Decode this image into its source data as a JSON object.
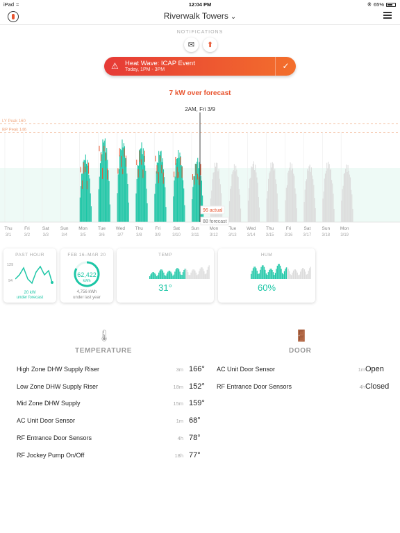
{
  "status": {
    "device": "iPad",
    "time": "12:04 PM",
    "battery": "65%"
  },
  "nav": {
    "title": "Riverwalk Towers"
  },
  "notifications": {
    "label": "NOTIFICATIONS"
  },
  "alert": {
    "title": "Heat Wave: ICAP Event",
    "subtitle": "Today, 1PM - 3PM"
  },
  "headline": "7 kW over forecast",
  "chart_data": {
    "type": "area",
    "cursor_label": "2AM, Fri 3/9",
    "ref_lines": [
      {
        "label": "LY Peak 160",
        "value": 160
      },
      {
        "label": "BP Peak 146",
        "value": 146
      }
    ],
    "actual_label": "96 actual",
    "forecast_label": "88 forecast",
    "days": [
      {
        "day": "Thu",
        "date": "3/1"
      },
      {
        "day": "Fri",
        "date": "3/2"
      },
      {
        "day": "Sat",
        "date": "3/3"
      },
      {
        "day": "Sun",
        "date": "3/4"
      },
      {
        "day": "Mon",
        "date": "3/5"
      },
      {
        "day": "Tue",
        "date": "3/6"
      },
      {
        "day": "Wed",
        "date": "3/7"
      },
      {
        "day": "Thu",
        "date": "3/8"
      },
      {
        "day": "Fri",
        "date": "3/9"
      },
      {
        "day": "Sat",
        "date": "3/10"
      },
      {
        "day": "Sun",
        "date": "3/11"
      },
      {
        "day": "Mon",
        "date": "3/12"
      },
      {
        "day": "Tue",
        "date": "3/13"
      },
      {
        "day": "Wed",
        "date": "3/14"
      },
      {
        "day": "Thu",
        "date": "3/15"
      },
      {
        "day": "Fri",
        "date": "3/16"
      },
      {
        "day": "Sat",
        "date": "3/17"
      },
      {
        "day": "Sun",
        "date": "3/18"
      },
      {
        "day": "Mon",
        "date": "3/19"
      }
    ],
    "daily_peaks_actual": [
      null,
      null,
      null,
      null,
      110,
      140,
      135,
      130,
      120,
      118,
      105,
      null,
      null,
      null,
      null,
      null,
      null,
      null,
      null
    ],
    "daily_peaks_forecast": [
      null,
      null,
      null,
      null,
      100,
      135,
      135,
      128,
      118,
      110,
      100,
      100,
      95,
      100,
      100,
      98,
      95,
      100,
      95
    ],
    "colors": {
      "actual": "#1cc6a6",
      "over": "#e8542f",
      "forecast": "#dcdcdc",
      "ref": "#f0a77f"
    }
  },
  "cards": {
    "past_hour": {
      "title": "PAST HOUR",
      "y_top": "129",
      "y_bottom": "94",
      "footer_value": "20 kW",
      "footer_text": "under forecast"
    },
    "period": {
      "title": "FEB 16–MAR 20",
      "value": "62,422",
      "unit": "kWh",
      "footer_value": "4,756 kWh",
      "footer_text": "under last year"
    },
    "temp": {
      "title": "TEMP",
      "value": "31°"
    },
    "hum": {
      "title": "HUM",
      "value": "60%"
    }
  },
  "temperature": {
    "title": "TEMPERATURE",
    "rows": [
      {
        "name": "High Zone DHW Supply Riser",
        "age": "3m",
        "value": "166°"
      },
      {
        "name": "Low Zone DHW Supply Riser",
        "age": "18m",
        "value": "152°"
      },
      {
        "name": "Mid Zone DHW Supply",
        "age": "15m",
        "value": "159°"
      },
      {
        "name": "AC Unit Door Sensor",
        "age": "1m",
        "value": "68°"
      },
      {
        "name": "RF Entrance Door Sensors",
        "age": "4h",
        "value": "78°"
      },
      {
        "name": "RF Jockey Pump On/Off",
        "age": "18h",
        "value": "77°"
      }
    ]
  },
  "door": {
    "title": "DOOR",
    "rows": [
      {
        "name": "AC Unit Door Sensor",
        "age": "1m",
        "value": "Open"
      },
      {
        "name": "RF Entrance Door Sensors",
        "age": "4h",
        "value": "Closed"
      }
    ]
  }
}
